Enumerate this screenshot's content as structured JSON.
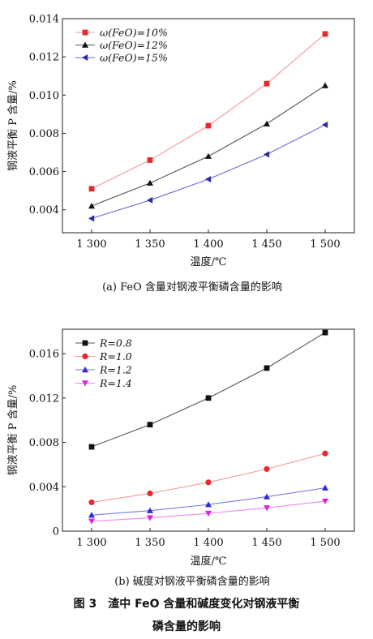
{
  "figure": {
    "caption_line1": "图 3　渣中 FeO 含量和碱度变化对钢液平衡",
    "caption_line2": "磷含量的影响"
  },
  "chart_data": [
    {
      "type": "line",
      "subcaption": "(a) FeO 含量对钢液平衡磷含量的影响",
      "xlabel": "温度/℃",
      "ylabel": "钢液平衡 P 含量/%",
      "x": [
        1300,
        1350,
        1400,
        1450,
        1500
      ],
      "x_tick_labels": [
        "1 300",
        "1 350",
        "1 400",
        "1 450",
        "1 500"
      ],
      "xlim": [
        1275,
        1525
      ],
      "ylim": [
        0.0028,
        0.014
      ],
      "y_ticks": [
        0.004,
        0.006,
        0.008,
        0.01,
        0.012,
        0.014
      ],
      "y_tick_labels": [
        "0.004",
        "0.006",
        "0.008",
        "0.010",
        "0.012",
        "0.014"
      ],
      "legend_position": "top-left",
      "grid": false,
      "series": [
        {
          "name": "ω(FeO)=10%",
          "values": [
            0.0051,
            0.0066,
            0.0084,
            0.0106,
            0.0132
          ],
          "color": "#e8282d",
          "line_color": "#f29a9a",
          "marker": "square"
        },
        {
          "name": "ω(FeO)=12%",
          "values": [
            0.0042,
            0.0054,
            0.0068,
            0.0085,
            0.0105
          ],
          "color": "#111111",
          "line_color": "#555555",
          "marker": "triangle-up"
        },
        {
          "name": "ω(FeO)=15%",
          "values": [
            0.00355,
            0.0045,
            0.0056,
            0.0069,
            0.00845
          ],
          "color": "#2a2aa8",
          "line_color": "#6a6ad0",
          "marker": "triangle-left"
        }
      ]
    },
    {
      "type": "line",
      "subcaption": "(b) 碱度对钢液平衡磷含量的影响",
      "xlabel": "温度/℃",
      "ylabel": "钢液平衡 P 含量/%",
      "x": [
        1300,
        1350,
        1400,
        1450,
        1500
      ],
      "x_tick_labels": [
        "1 300",
        "1 350",
        "1 400",
        "1 450",
        "1 500"
      ],
      "xlim": [
        1275,
        1525
      ],
      "ylim": [
        0,
        0.0182
      ],
      "y_ticks": [
        0,
        0.004,
        0.008,
        0.012,
        0.016
      ],
      "y_tick_labels": [
        "0",
        "0.004",
        "0.008",
        "0.012",
        "0.016"
      ],
      "legend_position": "top-left",
      "grid": false,
      "series": [
        {
          "name": "R=0.8",
          "values": [
            0.0076,
            0.0096,
            0.012,
            0.0147,
            0.0179
          ],
          "color": "#111111",
          "line_color": "#555555",
          "marker": "square"
        },
        {
          "name": "R=1.0",
          "values": [
            0.0026,
            0.0034,
            0.0044,
            0.0056,
            0.007
          ],
          "color": "#e8282d",
          "line_color": "#f29a9a",
          "marker": "circle"
        },
        {
          "name": "R=1.2",
          "values": [
            0.00145,
            0.00185,
            0.0024,
            0.0031,
            0.0039
          ],
          "color": "#2a2ad8",
          "line_color": "#7a7ae0",
          "marker": "triangle-up"
        },
        {
          "name": "R=1.4",
          "values": [
            0.0009,
            0.0012,
            0.0016,
            0.0021,
            0.0027
          ],
          "color": "#e020e0",
          "line_color": "#ee88ee",
          "marker": "triangle-down"
        }
      ]
    }
  ]
}
